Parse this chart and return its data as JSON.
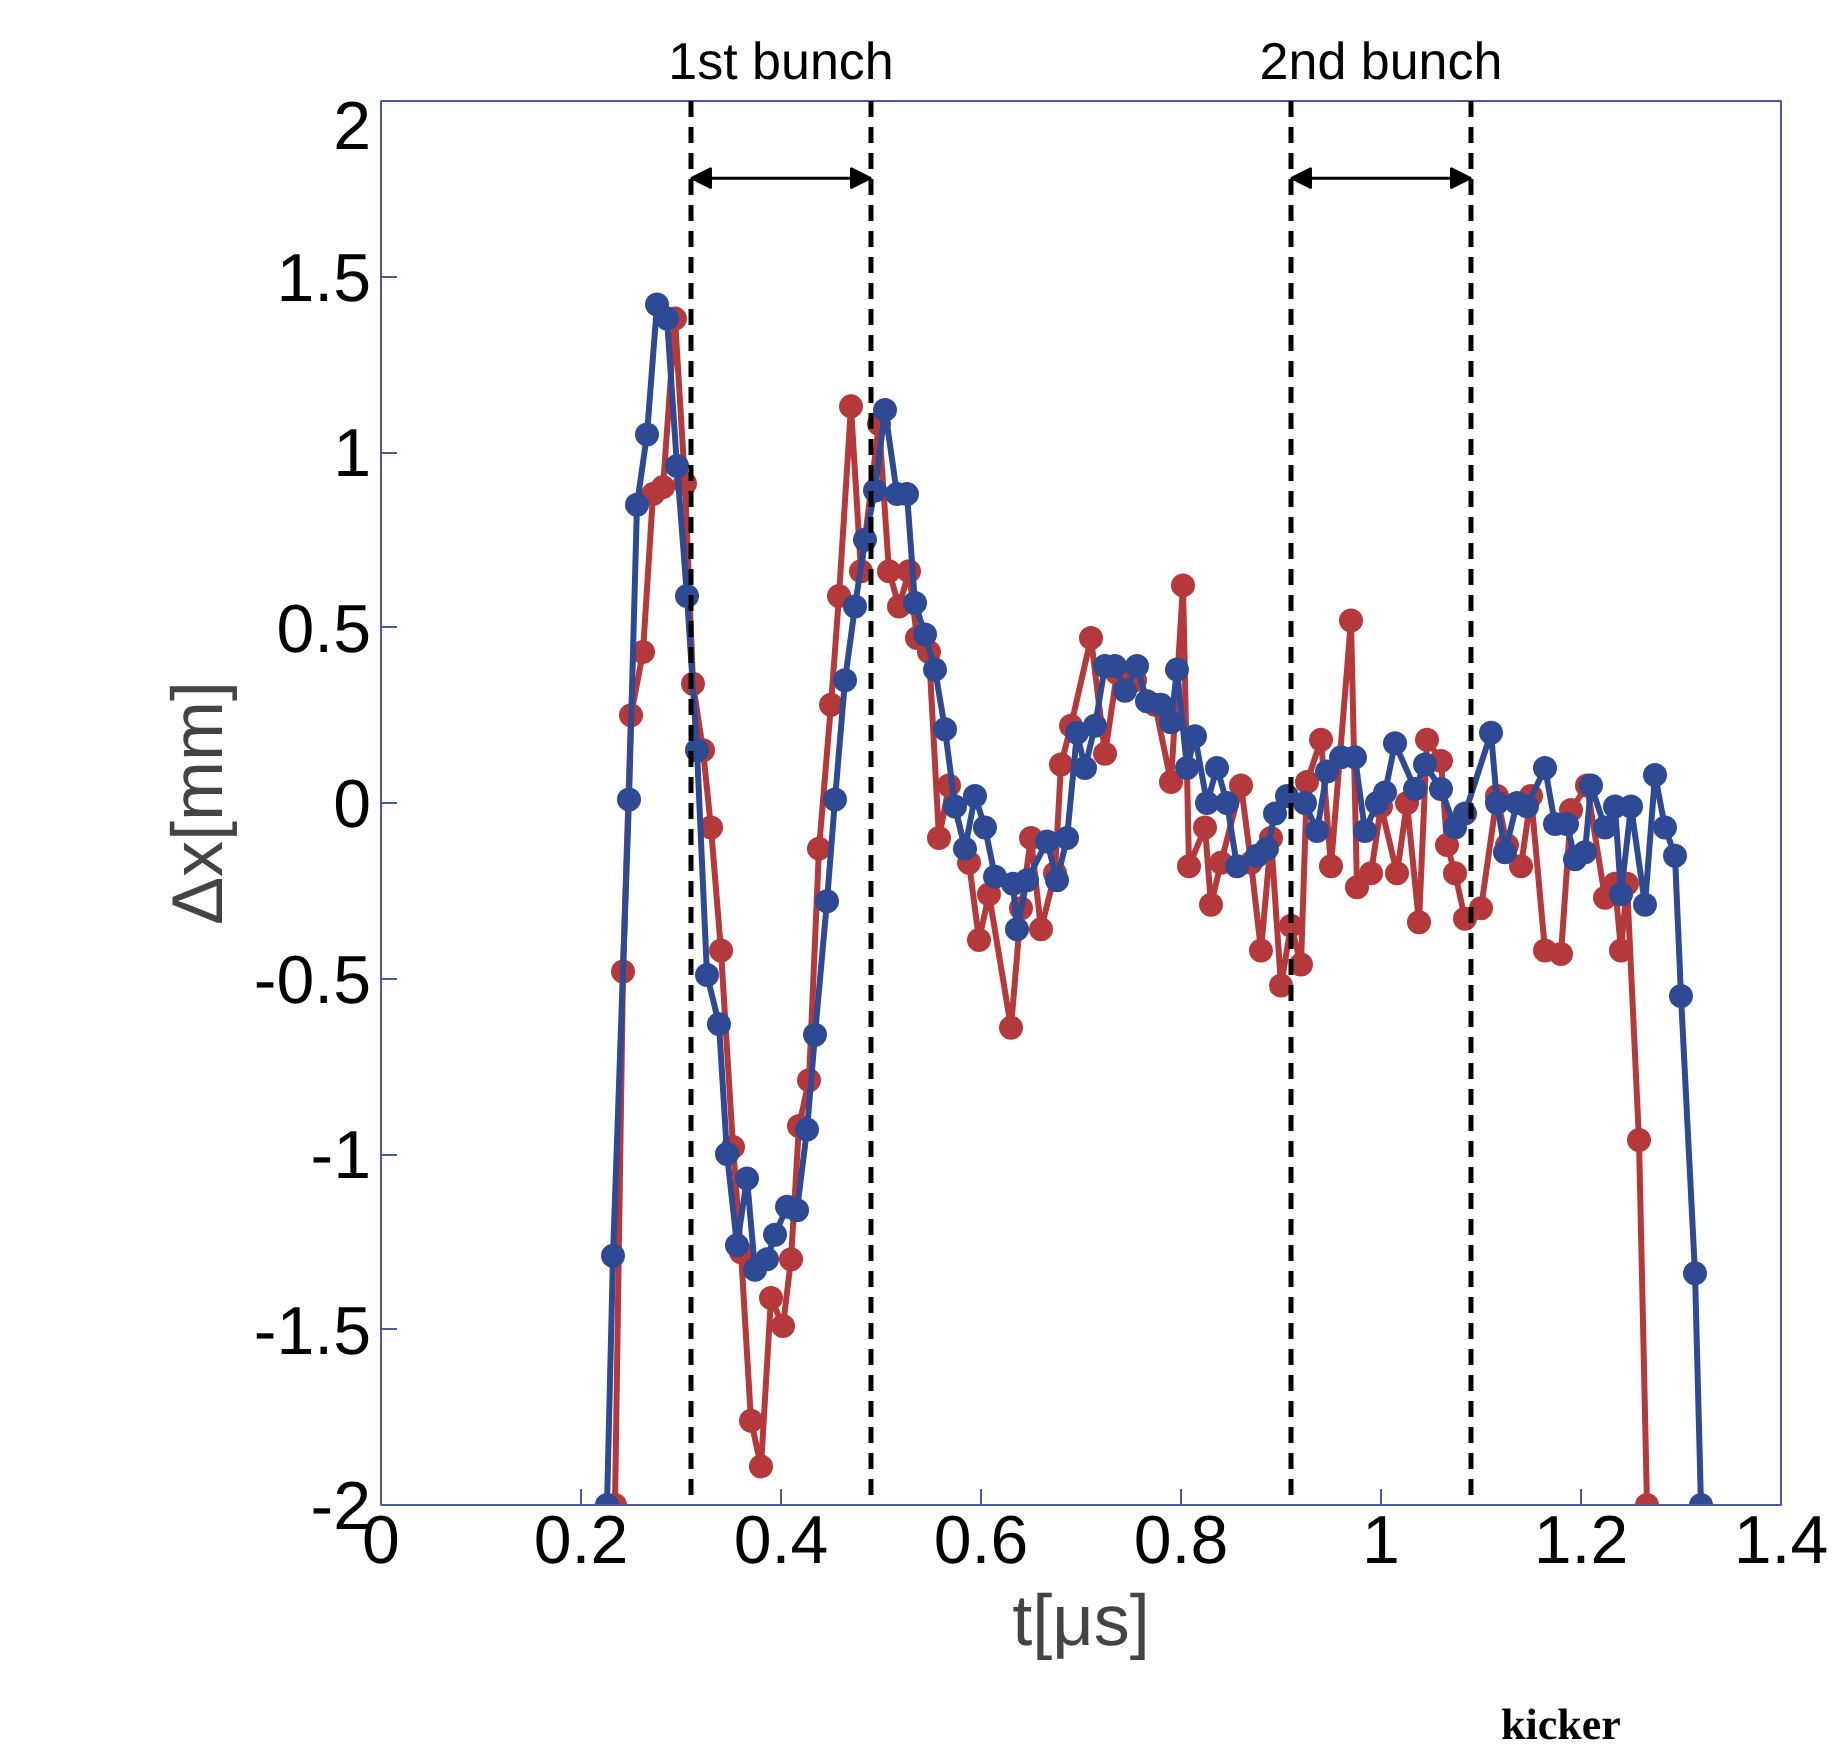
{
  "chart_data": {
    "type": "line",
    "xlabel": "t[μs]",
    "ylabel": "Δx[mm]",
    "xlim": [
      0,
      1.4
    ],
    "xticks": [
      0,
      0.2,
      0.4,
      0.6,
      0.8,
      1,
      1.2,
      1.4
    ],
    "ylim": [
      -2,
      2
    ],
    "yticks": [
      -2,
      -1.5,
      -1,
      -0.5,
      0,
      0.5,
      1,
      1.5,
      2
    ],
    "grid": false,
    "marker": "circle",
    "line_style": "solid",
    "ref_lines": [
      {
        "axis": "x",
        "value": 0.31,
        "line_style": "dashed",
        "color": "#000000"
      },
      {
        "axis": "x",
        "value": 0.49,
        "line_style": "dashed",
        "color": "#000000"
      },
      {
        "axis": "x",
        "value": 0.91,
        "line_style": "dashed",
        "color": "#000000"
      },
      {
        "axis": "x",
        "value": 1.09,
        "line_style": "dashed",
        "color": "#000000"
      }
    ],
    "annotations": [
      "1st bunch",
      "2nd bunch",
      "kicker"
    ],
    "legend": false,
    "series": [
      {
        "color": "#b5393a",
        "x": [
          0.234,
          0.242,
          0.25,
          0.262,
          0.272,
          0.282,
          0.294,
          0.304,
          0.312,
          0.322,
          0.33,
          0.34,
          0.352,
          0.36,
          0.37,
          0.38,
          0.39,
          0.402,
          0.41,
          0.418,
          0.428,
          0.438,
          0.45,
          0.458,
          0.47,
          0.48,
          0.498,
          0.508,
          0.518,
          0.528,
          0.536,
          0.548,
          0.558,
          0.568,
          0.588,
          0.598,
          0.608,
          0.63,
          0.64,
          0.65,
          0.66,
          0.674,
          0.68,
          0.69,
          0.71,
          0.724,
          0.736,
          0.754,
          0.774,
          0.79,
          0.802,
          0.808,
          0.824,
          0.83,
          0.84,
          0.86,
          0.87,
          0.88,
          0.89,
          0.9,
          0.91,
          0.92,
          0.926,
          0.94,
          0.95,
          0.97,
          0.976,
          0.99,
          1.0,
          1.016,
          1.026,
          1.038,
          1.046,
          1.06,
          1.066,
          1.074,
          1.084,
          1.1,
          1.116,
          1.126,
          1.14,
          1.15,
          1.164,
          1.18,
          1.19,
          1.206,
          1.224,
          1.234,
          1.24,
          1.246,
          1.258,
          1.266
        ],
        "values": [
          -2,
          -0.48,
          0.25,
          0.43,
          0.88,
          0.9,
          1.38,
          0.91,
          0.34,
          0.15,
          -0.07,
          -0.42,
          -0.98,
          -1.28,
          -1.76,
          -1.89,
          -1.41,
          -1.49,
          -1.3,
          -0.92,
          -0.79,
          -0.13,
          0.28,
          0.59,
          1.13,
          0.66,
          1.08,
          0.66,
          0.56,
          0.66,
          0.47,
          0.43,
          -0.1,
          0.05,
          -0.17,
          -0.39,
          -0.26,
          -0.64,
          -0.3,
          -0.1,
          -0.36,
          -0.2,
          0.11,
          0.22,
          0.47,
          0.14,
          0.37,
          0.35,
          0.28,
          0.06,
          0.62,
          -0.18,
          -0.07,
          -0.29,
          -0.17,
          0.05,
          -0.17,
          -0.42,
          -0.1,
          -0.52,
          -0.35,
          -0.46,
          0.06,
          0.18,
          -0.18,
          0.52,
          -0.24,
          -0.2,
          -0.01,
          -0.2,
          0,
          -0.34,
          0.18,
          0.12,
          -0.12,
          -0.2,
          -0.33,
          -0.3,
          0.02,
          -0.12,
          -0.18,
          0.02,
          -0.42,
          -0.43,
          -0.02,
          0.05,
          -0.27,
          -0.23,
          -0.42,
          -0.23,
          -0.96,
          -2
        ]
      },
      {
        "color": "#2e4a94",
        "x": [
          0.226,
          0.232,
          0.248,
          0.256,
          0.266,
          0.276,
          0.286,
          0.296,
          0.306,
          0.316,
          0.326,
          0.338,
          0.346,
          0.356,
          0.366,
          0.374,
          0.386,
          0.394,
          0.406,
          0.416,
          0.426,
          0.434,
          0.446,
          0.454,
          0.464,
          0.474,
          0.484,
          0.494,
          0.504,
          0.516,
          0.526,
          0.534,
          0.544,
          0.554,
          0.564,
          0.574,
          0.584,
          0.594,
          0.604,
          0.614,
          0.632,
          0.636,
          0.646,
          0.666,
          0.676,
          0.686,
          0.696,
          0.704,
          0.714,
          0.724,
          0.734,
          0.744,
          0.756,
          0.766,
          0.78,
          0.79,
          0.796,
          0.806,
          0.814,
          0.826,
          0.836,
          0.846,
          0.856,
          0.876,
          0.886,
          0.894,
          0.906,
          0.924,
          0.936,
          0.946,
          0.96,
          0.974,
          0.984,
          0.996,
          1.004,
          1.014,
          1.034,
          1.044,
          1.06,
          1.074,
          1.084,
          1.11,
          1.116,
          1.124,
          1.136,
          1.146,
          1.164,
          1.174,
          1.186,
          1.194,
          1.204,
          1.21,
          1.224,
          1.234,
          1.24,
          1.25,
          1.264,
          1.274,
          1.284,
          1.294,
          1.3,
          1.314,
          1.32
        ],
        "values": [
          -2,
          -1.29,
          0.01,
          0.85,
          1.05,
          1.42,
          1.38,
          0.96,
          0.59,
          0.15,
          -0.49,
          -0.63,
          -1.0,
          -1.26,
          -1.07,
          -1.33,
          -1.3,
          -1.23,
          -1.15,
          -1.16,
          -0.93,
          -0.66,
          -0.28,
          0.01,
          0.35,
          0.56,
          0.75,
          0.89,
          1.12,
          0.88,
          0.88,
          0.57,
          0.48,
          0.38,
          0.21,
          -0.01,
          -0.13,
          0.02,
          -0.07,
          -0.21,
          -0.23,
          -0.36,
          -0.22,
          -0.11,
          -0.22,
          -0.1,
          0.2,
          0.1,
          0.22,
          0.39,
          0.39,
          0.32,
          0.39,
          0.29,
          0.28,
          0.23,
          0.38,
          0.1,
          0.19,
          0,
          0.1,
          0,
          -0.18,
          -0.15,
          -0.13,
          -0.03,
          0.02,
          0,
          -0.08,
          0.09,
          0.13,
          0.13,
          -0.08,
          0,
          0.03,
          0.17,
          0.04,
          0.11,
          0.04,
          -0.07,
          -0.03,
          0.2,
          0,
          -0.14,
          0,
          -0.01,
          0.1,
          -0.06,
          -0.06,
          -0.16,
          -0.14,
          0.05,
          -0.07,
          -0.01,
          -0.26,
          -0.01,
          -0.29,
          0.08,
          -0.07,
          -0.15,
          -0.55,
          -1.34,
          -2
        ]
      }
    ]
  }
}
